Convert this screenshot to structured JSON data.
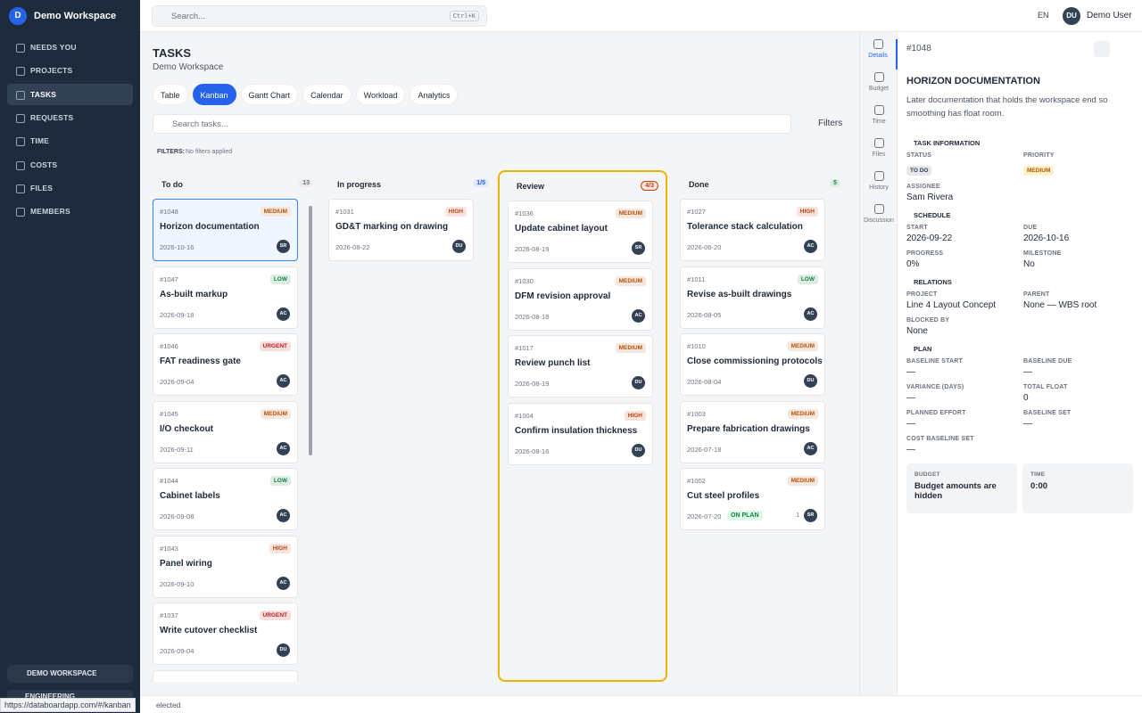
{
  "sidebar": {
    "avatar": "D",
    "workspace": "Demo Workspace",
    "nav": [
      "NEEDS YOU",
      "PROJECTS",
      "TASKS",
      "REQUESTS",
      "TIME",
      "COSTS",
      "FILES",
      "MEMBERS"
    ],
    "workspace_switch": "DEMO WORKSPACE",
    "team_switch": "ENGINEERING"
  },
  "topbar": {
    "search": "Search...",
    "shortcut": "Ctrl+K",
    "language": "EN",
    "user_initials": "DU",
    "user_name": "Demo User"
  },
  "header": {
    "title": "TASKS",
    "subtitle": "Demo Workspace"
  },
  "tabs": [
    "Table",
    "Kanban",
    "Gantt Chart",
    "Calendar",
    "Workload",
    "Analytics"
  ],
  "toolbar": {
    "search": "Search tasks...",
    "filters_button": "Filters",
    "filters_label": "FILTERS:",
    "filters_value": "No filters applied"
  },
  "columns": [
    {
      "name": "To do",
      "count": "13",
      "count_color": "#6b7280",
      "cards": [
        {
          "id": "#1048",
          "priority": "MEDIUM",
          "priority_color": "#b45309",
          "title": "Horizon documentation",
          "date": "2026-10-16",
          "assignee": "SR"
        },
        {
          "id": "#1047",
          "priority": "LOW",
          "priority_color": "#15803d",
          "title": "As-built markup",
          "date": "2026-09-18",
          "assignee": "AC"
        },
        {
          "id": "#1046",
          "priority": "URGENT",
          "priority_color": "#b91c1c",
          "title": "FAT readiness gate",
          "date": "2026-09-04",
          "assignee": "AC"
        },
        {
          "id": "#1045",
          "priority": "MEDIUM",
          "priority_color": "#b45309",
          "title": "I/O checkout",
          "date": "2026-09-11",
          "assignee": "AC"
        },
        {
          "id": "#1044",
          "priority": "LOW",
          "priority_color": "#15803d",
          "title": "Cabinet labels",
          "date": "2026-09-08",
          "assignee": "AC"
        },
        {
          "id": "#1043",
          "priority": "HIGH",
          "priority_color": "#c2410c",
          "title": "Panel wiring",
          "date": "2026-09-10",
          "assignee": "AC"
        },
        {
          "id": "#1037",
          "priority": "URGENT",
          "priority_color": "#b91c1c",
          "title": "Write cutover checklist",
          "date": "2026-09-04",
          "assignee": "DU"
        }
      ]
    },
    {
      "name": "In progress",
      "count": "1/5",
      "count_color": "#2563eb",
      "cards": [
        {
          "id": "#1031",
          "priority": "HIGH",
          "priority_color": "#c2410c",
          "title": "GD&T marking on drawing",
          "date": "2026-08-22",
          "assignee": "DU"
        }
      ]
    },
    {
      "name": "Review",
      "count": "4/3",
      "count_color": "#c2410c",
      "cards": [
        {
          "id": "#1036",
          "priority": "MEDIUM",
          "priority_color": "#b45309",
          "title": "Update cabinet layout",
          "date": "2026-08-19",
          "assignee": "SR"
        },
        {
          "id": "#1030",
          "priority": "MEDIUM",
          "priority_color": "#b45309",
          "title": "DFM revision approval",
          "date": "2026-08-18",
          "assignee": "AC"
        },
        {
          "id": "#1017",
          "priority": "MEDIUM",
          "priority_color": "#b45309",
          "title": "Review punch list",
          "date": "2026-08-19",
          "assignee": "DU"
        },
        {
          "id": "#1004",
          "priority": "HIGH",
          "priority_color": "#c2410c",
          "title": "Confirm insulation thickness",
          "date": "2026-08-16",
          "assignee": "DU"
        }
      ]
    },
    {
      "name": "Done",
      "count": "5",
      "count_color": "#15803d",
      "cards": [
        {
          "id": "#1027",
          "priority": "HIGH",
          "priority_color": "#c2410c",
          "title": "Tolerance stack calculation",
          "date": "2026-06-20",
          "assignee": "AC"
        },
        {
          "id": "#1011",
          "priority": "LOW",
          "priority_color": "#15803d",
          "title": "Revise as-built drawings",
          "date": "2026-08-05",
          "assignee": "AC"
        },
        {
          "id": "#1010",
          "priority": "MEDIUM",
          "priority_color": "#b45309",
          "title": "Close commissioning protocols",
          "date": "2026-08-04",
          "assignee": "DU"
        },
        {
          "id": "#1003",
          "priority": "MEDIUM",
          "priority_color": "#b45309",
          "title": "Prepare fabrication drawings",
          "date": "2026-07-18",
          "assignee": "AC"
        },
        {
          "id": "#1002",
          "priority": "MEDIUM",
          "priority_color": "#b45309",
          "title": "Cut steel profiles",
          "date": "2026-07-20",
          "assignee": "SR",
          "badge": "ON PLAN",
          "attachments": "1"
        }
      ]
    }
  ],
  "panel_tabs": [
    "Details",
    "Budget",
    "Time",
    "Files",
    "History",
    "Discussion"
  ],
  "details": {
    "id": "#1048",
    "title": "HORIZON DOCUMENTATION",
    "description": "Later documentation that holds the workspace end so smoothing has float room.",
    "sections": [
      {
        "title": "TASK INFORMATION",
        "fields": [
          {
            "label": "STATUS",
            "value": "TO DO"
          },
          {
            "label": "PRIORITY",
            "value": "MEDIUM"
          },
          {
            "label": "ASSIGNEE",
            "value": "Sam Rivera"
          }
        ]
      },
      {
        "title": "SCHEDULE",
        "fields": [
          {
            "label": "START",
            "value": "2026-09-22"
          },
          {
            "label": "DUE",
            "value": "2026-10-16"
          },
          {
            "label": "PROGRESS",
            "value": "0%"
          },
          {
            "label": "MILESTONE",
            "value": "No"
          }
        ]
      },
      {
        "title": "RELATIONS",
        "fields": [
          {
            "label": "PROJECT",
            "value": "Line 4 Layout Concept"
          },
          {
            "label": "PARENT",
            "value": "None — WBS root"
          },
          {
            "label": "BLOCKED BY",
            "value": "None"
          }
        ]
      },
      {
        "title": "PLAN",
        "fields": [
          {
            "label": "BASELINE START",
            "value": "—"
          },
          {
            "label": "BASELINE DUE",
            "value": "—"
          },
          {
            "label": "VARIANCE (DAYS)",
            "value": "—"
          },
          {
            "label": "TOTAL FLOAT",
            "value": "0"
          },
          {
            "label": "PLANNED EFFORT",
            "value": "—"
          },
          {
            "label": "BASELINE SET",
            "value": "—"
          },
          {
            "label": "COST BASELINE SET",
            "value": "—"
          }
        ]
      }
    ],
    "boxes": [
      {
        "label": "BUDGET",
        "value": "Budget amounts are hidden"
      },
      {
        "label": "TIME",
        "value": "0:00"
      }
    ]
  },
  "statusbar": {
    "url": "https://databoardapp.com/#/kanban",
    "text": "elected"
  }
}
